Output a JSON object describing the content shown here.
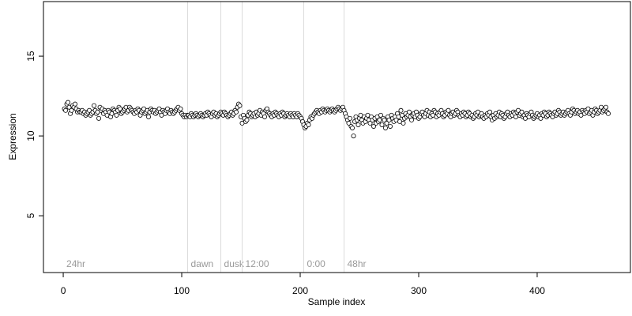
{
  "chart_data": {
    "type": "scatter",
    "xlabel": "Sample index",
    "ylabel": "Expression",
    "xlim": [
      -16.7,
      478.7
    ],
    "ylim": [
      1.44,
      18.42
    ],
    "xticks": [
      0,
      100,
      200,
      300,
      400
    ],
    "yticks": [
      5,
      10,
      15
    ],
    "point_color": "#000000",
    "point_fill": "#ffffff",
    "annotation_color": "#dcdcdc",
    "annotations": [
      {
        "x": 0,
        "label": "24hr",
        "line": false
      },
      {
        "x": 105,
        "label": "dawn",
        "line": true
      },
      {
        "x": 133,
        "label": "dusk",
        "line": true
      },
      {
        "x": 151,
        "label": "12:00",
        "line": true
      },
      {
        "x": 203,
        "label": "0:00",
        "line": true
      },
      {
        "x": 237,
        "label": "48hr",
        "line": true
      }
    ],
    "x": [
      1,
      2,
      3,
      4,
      5,
      6,
      7,
      8,
      9,
      10,
      11,
      12,
      13,
      14,
      15,
      16,
      17,
      18,
      19,
      20,
      21,
      22,
      23,
      24,
      25,
      26,
      27,
      28,
      29,
      30,
      31,
      32,
      33,
      34,
      35,
      36,
      37,
      38,
      39,
      40,
      41,
      42,
      43,
      44,
      45,
      46,
      47,
      48,
      49,
      50,
      51,
      52,
      53,
      54,
      55,
      56,
      57,
      58,
      59,
      60,
      61,
      62,
      63,
      64,
      65,
      66,
      67,
      68,
      69,
      70,
      71,
      72,
      73,
      74,
      75,
      76,
      77,
      78,
      79,
      80,
      81,
      82,
      83,
      84,
      85,
      86,
      87,
      88,
      89,
      90,
      91,
      92,
      93,
      94,
      95,
      96,
      97,
      98,
      99,
      100,
      101,
      102,
      103,
      104,
      105,
      106,
      107,
      108,
      109,
      110,
      111,
      112,
      113,
      114,
      115,
      116,
      117,
      118,
      119,
      120,
      121,
      122,
      123,
      124,
      125,
      126,
      127,
      128,
      129,
      130,
      131,
      132,
      133,
      134,
      135,
      136,
      137,
      138,
      139,
      140,
      141,
      142,
      143,
      144,
      145,
      146,
      147,
      148,
      149,
      150,
      151,
      152,
      153,
      154,
      155,
      156,
      157,
      158,
      159,
      160,
      161,
      162,
      163,
      164,
      165,
      166,
      167,
      168,
      169,
      170,
      171,
      172,
      173,
      174,
      175,
      176,
      177,
      178,
      179,
      180,
      181,
      182,
      183,
      184,
      185,
      186,
      187,
      188,
      189,
      190,
      191,
      192,
      193,
      194,
      195,
      196,
      197,
      198,
      199,
      200,
      201,
      202,
      203,
      204,
      205,
      206,
      207,
      208,
      209,
      210,
      211,
      212,
      213,
      214,
      215,
      216,
      217,
      218,
      219,
      220,
      221,
      222,
      223,
      224,
      225,
      226,
      227,
      228,
      229,
      230,
      231,
      232,
      233,
      234,
      235,
      236,
      237,
      238,
      239,
      240,
      241,
      242,
      243,
      244,
      245,
      246,
      247,
      248,
      249,
      250,
      251,
      252,
      253,
      254,
      255,
      256,
      257,
      258,
      259,
      260,
      261,
      262,
      263,
      264,
      265,
      266,
      267,
      268,
      269,
      270,
      271,
      272,
      273,
      274,
      275,
      276,
      277,
      278,
      279,
      280,
      281,
      282,
      283,
      284,
      285,
      286,
      287,
      288,
      289,
      290,
      291,
      292,
      293,
      294,
      295,
      296,
      297,
      298,
      299,
      300,
      301,
      302,
      303,
      304,
      305,
      306,
      307,
      308,
      309,
      310,
      311,
      312,
      313,
      314,
      315,
      316,
      317,
      318,
      319,
      320,
      321,
      322,
      323,
      324,
      325,
      326,
      327,
      328,
      329,
      330,
      331,
      332,
      333,
      334,
      335,
      336,
      337,
      338,
      339,
      340,
      341,
      342,
      343,
      344,
      345,
      346,
      347,
      348,
      349,
      350,
      351,
      352,
      353,
      354,
      355,
      356,
      357,
      358,
      359,
      360,
      361,
      362,
      363,
      364,
      365,
      366,
      367,
      368,
      369,
      370,
      371,
      372,
      373,
      374,
      375,
      376,
      377,
      378,
      379,
      380,
      381,
      382,
      383,
      384,
      385,
      386,
      387,
      388,
      389,
      390,
      391,
      392,
      393,
      394,
      395,
      396,
      397,
      398,
      399,
      400,
      401,
      402,
      403,
      404,
      405,
      406,
      407,
      408,
      409,
      410,
      411,
      412,
      413,
      414,
      415,
      416,
      417,
      418,
      419,
      420,
      421,
      422,
      423,
      424,
      425,
      426,
      427,
      428,
      429,
      430,
      431,
      432,
      433,
      434,
      435,
      436,
      437,
      438,
      439,
      440,
      441,
      442,
      443,
      444,
      445,
      446,
      447,
      448,
      449,
      450,
      451,
      452,
      453,
      454,
      455,
      456,
      457,
      458,
      459,
      460
    ],
    "values": [
      11.7,
      11.6,
      12.0,
      12.1,
      11.8,
      11.4,
      11.6,
      11.9,
      11.8,
      12.0,
      11.7,
      11.5,
      11.6,
      11.5,
      11.5,
      11.6,
      11.4,
      11.5,
      11.3,
      11.4,
      11.5,
      11.6,
      11.3,
      11.4,
      11.5,
      11.9,
      11.6,
      11.4,
      11.5,
      11.1,
      11.8,
      11.6,
      11.7,
      11.4,
      11.6,
      11.5,
      11.3,
      11.6,
      11.5,
      11.2,
      11.4,
      11.7,
      11.6,
      11.5,
      11.3,
      11.6,
      11.8,
      11.7,
      11.4,
      11.5,
      11.6,
      11.7,
      11.8,
      11.5,
      11.6,
      11.8,
      11.7,
      11.6,
      11.5,
      11.4,
      11.6,
      11.5,
      11.7,
      11.6,
      11.3,
      11.5,
      11.6,
      11.7,
      11.4,
      11.5,
      11.6,
      11.2,
      11.5,
      11.7,
      11.6,
      11.5,
      11.6,
      11.4,
      11.5,
      11.6,
      11.7,
      11.5,
      11.3,
      11.6,
      11.5,
      11.4,
      11.6,
      11.7,
      11.5,
      11.4,
      11.6,
      11.5,
      11.4,
      11.5,
      11.6,
      11.7,
      11.8,
      11.6,
      11.7,
      11.4,
      11.3,
      11.2,
      11.3,
      11.2,
      11.3,
      11.3,
      11.2,
      11.4,
      11.3,
      11.2,
      11.3,
      11.4,
      11.3,
      11.2,
      11.3,
      11.4,
      11.3,
      11.2,
      11.3,
      11.4,
      11.3,
      11.5,
      11.4,
      11.3,
      11.2,
      11.4,
      11.5,
      11.3,
      11.4,
      11.2,
      11.3,
      11.4,
      11.5,
      11.4,
      11.3,
      11.5,
      11.4,
      11.3,
      11.2,
      11.3,
      11.4,
      11.5,
      11.3,
      11.4,
      11.6,
      11.5,
      11.8,
      12.0,
      11.9,
      11.2,
      10.8,
      11.3,
      11.1,
      10.9,
      11.0,
      11.3,
      11.5,
      11.4,
      11.2,
      11.3,
      11.4,
      11.2,
      11.5,
      11.3,
      11.4,
      11.6,
      11.3,
      11.5,
      11.4,
      11.2,
      11.6,
      11.7,
      11.5,
      11.4,
      11.3,
      11.2,
      11.4,
      11.3,
      11.5,
      11.4,
      11.3,
      11.2,
      11.4,
      11.3,
      11.5,
      11.4,
      11.2,
      11.3,
      11.4,
      11.3,
      11.2,
      11.4,
      11.3,
      11.2,
      11.4,
      11.3,
      11.2,
      11.4,
      11.3,
      11.2,
      11.1,
      10.9,
      10.7,
      10.5,
      10.6,
      10.8,
      10.7,
      11.0,
      11.2,
      11.1,
      11.3,
      11.4,
      11.5,
      11.6,
      11.5,
      11.4,
      11.6,
      11.5,
      11.7,
      11.6,
      11.5,
      11.6,
      11.7,
      11.6,
      11.5,
      11.6,
      11.7,
      11.6,
      11.5,
      11.6,
      11.7,
      11.8,
      11.7,
      11.6,
      11.7,
      11.8,
      11.6,
      11.4,
      11.2,
      11.0,
      10.8,
      11.1,
      10.6,
      10.5,
      10.0,
      10.9,
      11.2,
      11.0,
      10.7,
      11.1,
      11.3,
      11.0,
      10.8,
      11.2,
      10.9,
      11.1,
      11.3,
      11.0,
      10.8,
      11.2,
      11.0,
      10.6,
      11.1,
      10.8,
      11.2,
      10.9,
      11.0,
      11.3,
      10.7,
      11.1,
      11.0,
      10.5,
      10.8,
      11.2,
      11.0,
      10.6,
      11.3,
      11.1,
      10.9,
      11.2,
      11.0,
      11.4,
      11.2,
      10.9,
      11.6,
      11.3,
      10.8,
      11.1,
      11.4,
      11.2,
      11.3,
      11.5,
      11.2,
      11.0,
      11.3,
      11.4,
      11.2,
      11.5,
      11.3,
      11.1,
      11.2,
      11.4,
      11.5,
      11.3,
      11.2,
      11.4,
      11.6,
      11.3,
      11.5,
      11.2,
      11.4,
      11.3,
      11.6,
      11.5,
      11.2,
      11.4,
      11.3,
      11.5,
      11.6,
      11.4,
      11.2,
      11.3,
      11.5,
      11.4,
      11.6,
      11.3,
      11.2,
      11.4,
      11.5,
      11.3,
      11.4,
      11.6,
      11.5,
      11.3,
      11.2,
      11.4,
      11.3,
      11.5,
      11.4,
      11.2,
      11.3,
      11.5,
      11.4,
      11.2,
      11.3,
      11.1,
      11.2,
      11.4,
      11.3,
      11.5,
      11.2,
      11.3,
      11.4,
      11.2,
      11.1,
      11.3,
      11.2,
      11.4,
      11.3,
      11.5,
      11.2,
      11.0,
      11.3,
      11.1,
      11.4,
      11.2,
      11.3,
      11.5,
      11.2,
      11.4,
      11.3,
      11.1,
      11.2,
      11.4,
      11.5,
      11.3,
      11.2,
      11.4,
      11.3,
      11.5,
      11.4,
      11.2,
      11.5,
      11.6,
      11.3,
      11.4,
      11.5,
      11.2,
      11.3,
      11.1,
      11.4,
      11.3,
      11.2,
      11.4,
      11.5,
      11.3,
      11.1,
      11.2,
      11.3,
      11.4,
      11.2,
      11.3,
      11.1,
      11.4,
      11.3,
      11.5,
      11.4,
      11.2,
      11.3,
      11.5,
      11.4,
      11.3,
      11.2,
      11.4,
      11.5,
      11.3,
      11.4,
      11.6,
      11.5,
      11.3,
      11.4,
      11.5,
      11.3,
      11.4,
      11.5,
      11.6,
      11.4,
      11.3,
      11.5,
      11.7,
      11.6,
      11.4,
      11.5,
      11.6,
      11.4,
      11.5,
      11.3,
      11.6,
      11.5,
      11.4,
      11.6,
      11.5,
      11.7,
      11.4,
      11.5,
      11.6,
      11.3,
      11.5,
      11.7,
      11.6,
      11.4,
      11.5,
      11.6,
      11.8,
      11.5,
      11.6,
      11.7,
      11.8,
      11.5,
      11.4
    ]
  }
}
